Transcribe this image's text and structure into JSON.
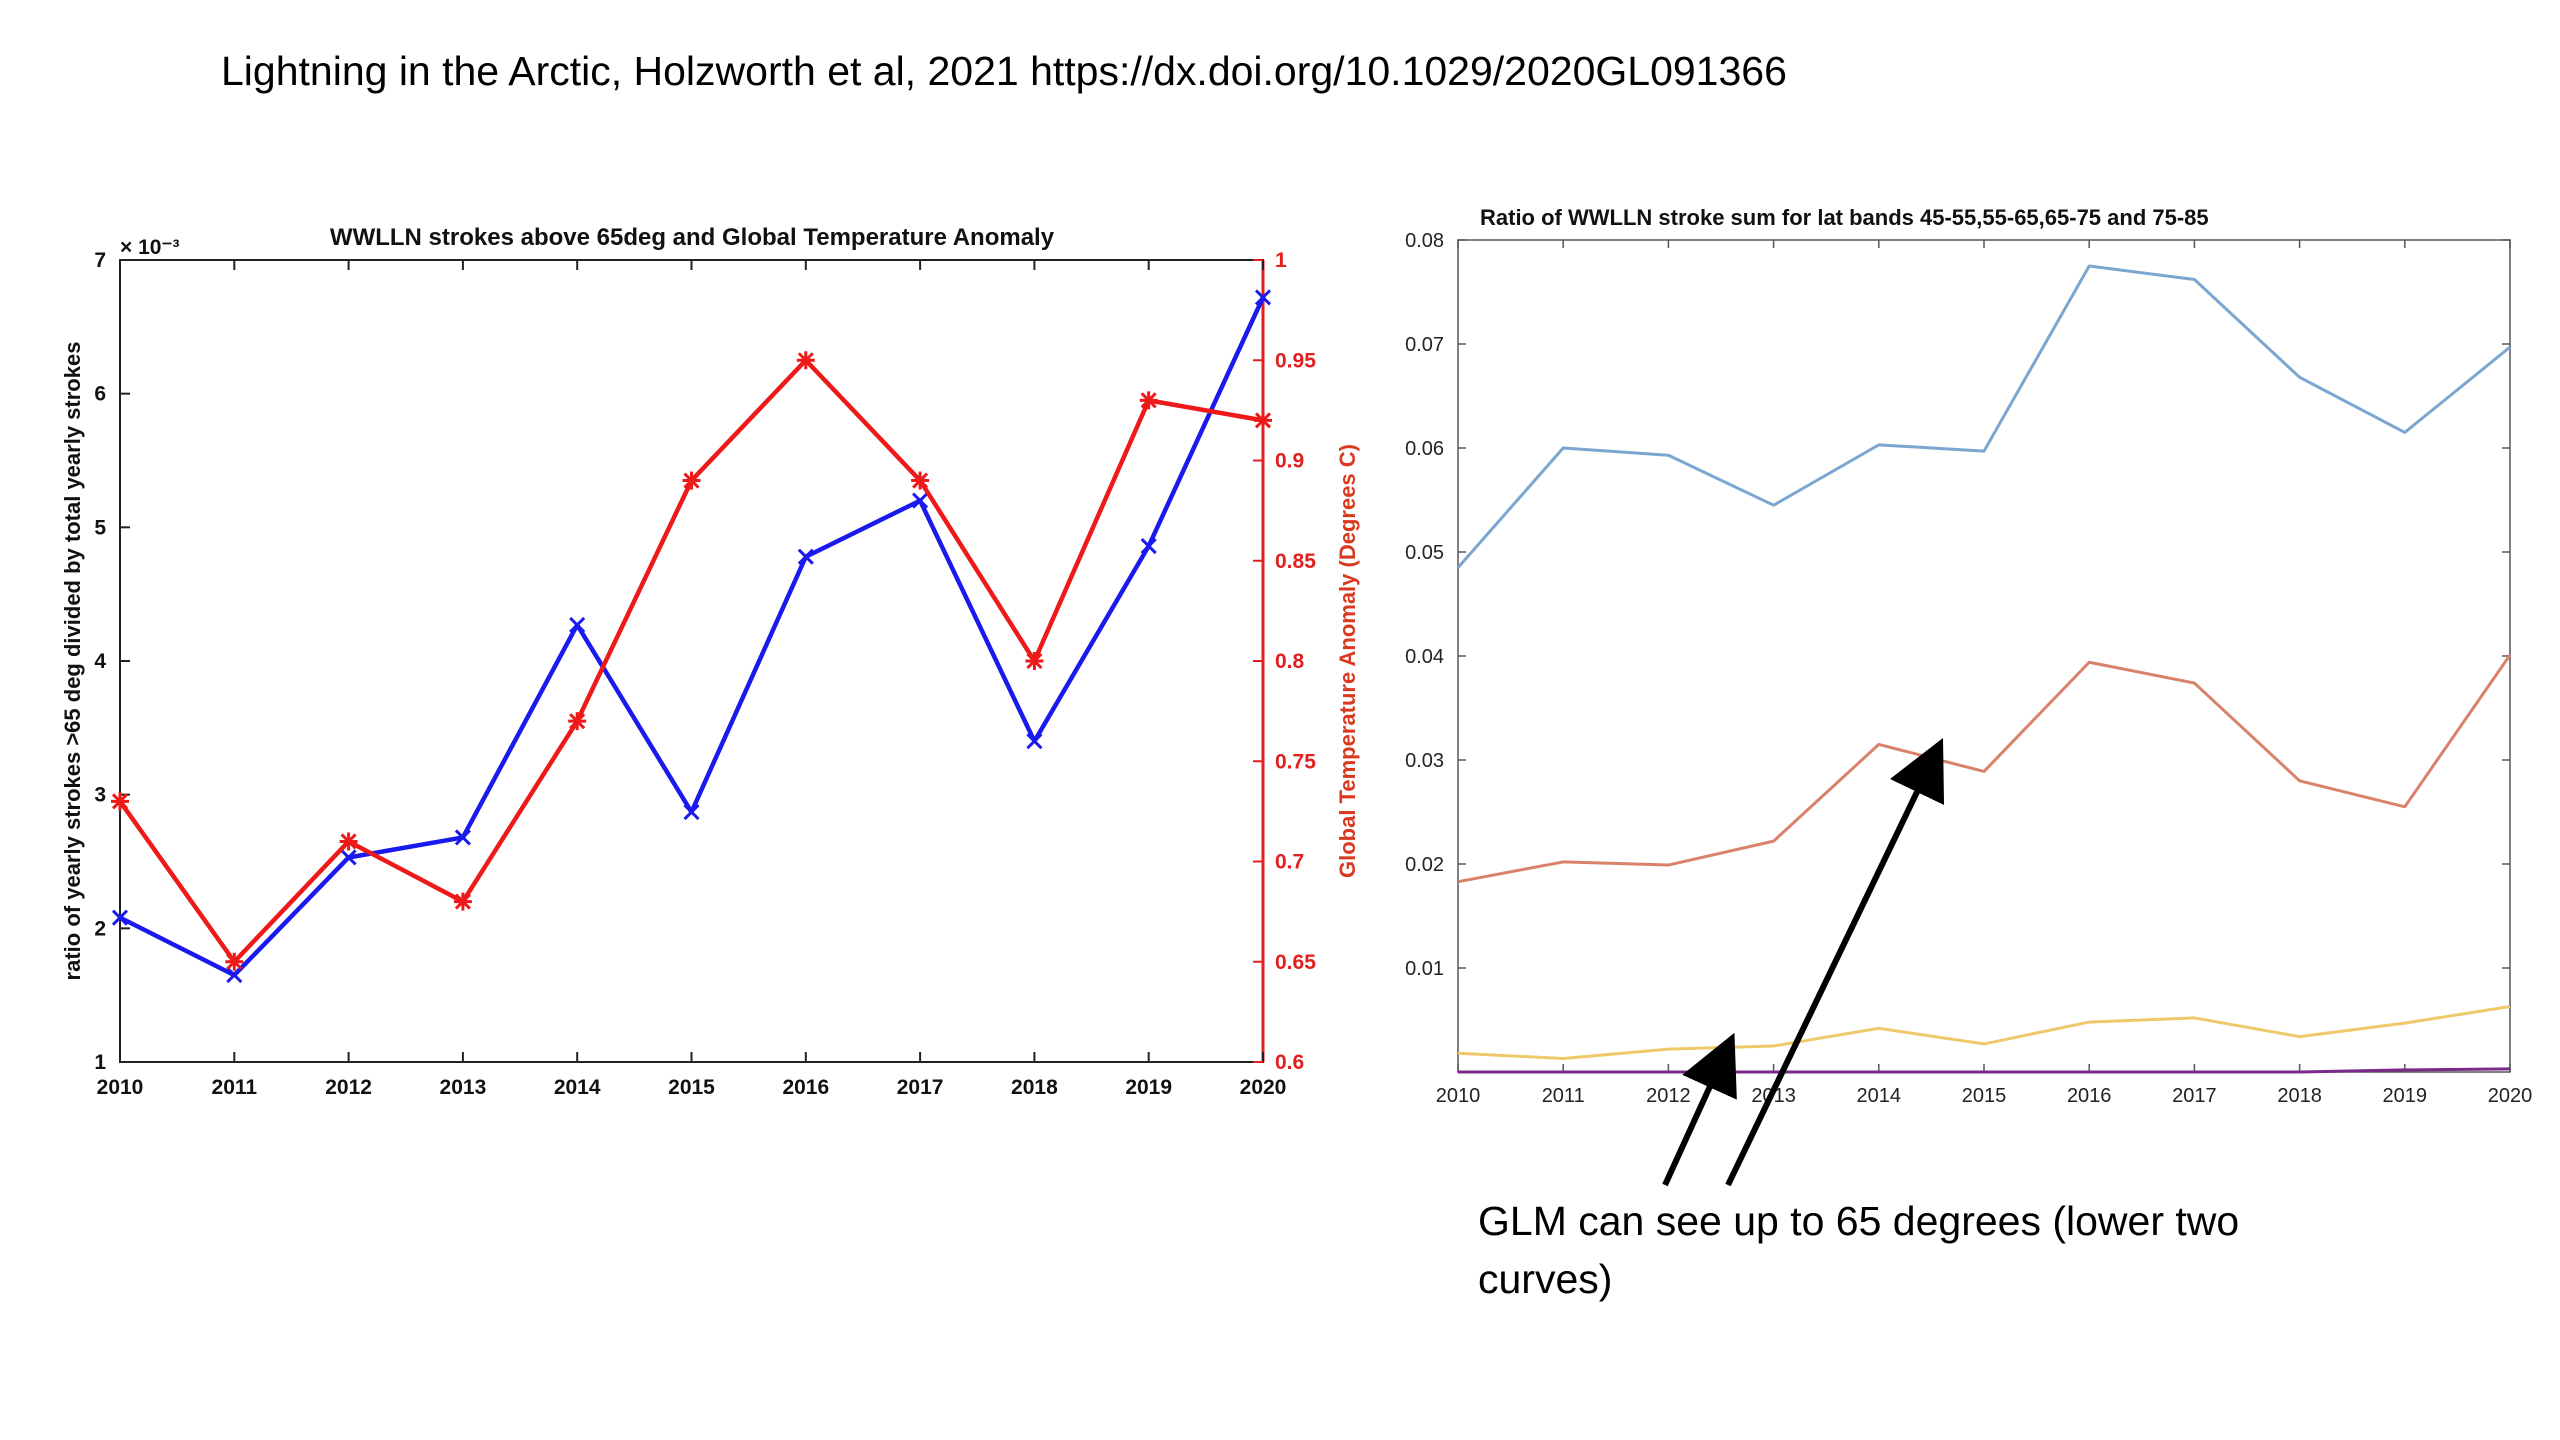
{
  "slide": {
    "title": "Lightning in the Arctic, Holzworth et al, 2021 https://dx.doi.org/10.1029/2020GL091366",
    "note": "GLM can see up to 65 degrees (lower two curves)"
  },
  "chart_data": [
    {
      "type": "line",
      "title": "WWLLN strokes above 65deg and Global Temperature Anomaly",
      "x": [
        2010,
        2011,
        2012,
        2013,
        2014,
        2015,
        2016,
        2017,
        2018,
        2019,
        2020
      ],
      "xlim": [
        2010,
        2020
      ],
      "ylabel": "ratio of yearly strokes >65 deg divided by total yearly strokes",
      "ylim": [
        1,
        7
      ],
      "y_multiplier": "× 10⁻³",
      "ylabel_right": "Global Temperature Anomaly (Degrees C)",
      "ylim_right": [
        0.6,
        1.0
      ],
      "yticks": [
        1,
        2,
        3,
        4,
        5,
        6,
        7
      ],
      "yticks_right": [
        "0.6",
        "0.65",
        "0.7",
        "0.75",
        "0.8",
        "0.85",
        "0.9",
        "0.95",
        "1"
      ],
      "grid": false,
      "series": [
        {
          "color": "#1a1aee",
          "axis": "left",
          "marker": "x",
          "values": [
            2.08,
            1.65,
            2.53,
            2.68,
            4.27,
            2.87,
            4.78,
            5.2,
            3.4,
            4.86,
            6.72
          ]
        },
        {
          "color": "#ee1a1a",
          "axis": "right",
          "marker": "star",
          "values": [
            0.73,
            0.65,
            0.71,
            0.68,
            0.77,
            0.89,
            0.95,
            0.89,
            0.8,
            0.93,
            0.92
          ]
        }
      ]
    },
    {
      "type": "line",
      "title": "Ratio of WWLLN stroke sum for lat bands 45-55,55-65,65-75 and 75-85",
      "x": [
        2010,
        2011,
        2012,
        2013,
        2014,
        2015,
        2016,
        2017,
        2018,
        2019,
        2020
      ],
      "xlim": [
        2010,
        2020
      ],
      "ylim": [
        0,
        0.08
      ],
      "yticks": [
        "0.01",
        "0.02",
        "0.03",
        "0.04",
        "0.05",
        "0.06",
        "0.07",
        "0.08"
      ],
      "grid": false,
      "series": [
        {
          "color": "#7aa6d0",
          "values": [
            0.0485,
            0.06,
            0.0593,
            0.0545,
            0.0603,
            0.0597,
            0.0775,
            0.0762,
            0.0668,
            0.0615,
            0.0697
          ]
        },
        {
          "color": "#d9826a",
          "values": [
            0.0183,
            0.0202,
            0.0199,
            0.0222,
            0.0315,
            0.0289,
            0.0394,
            0.0374,
            0.028,
            0.0255,
            0.0401
          ]
        },
        {
          "color": "#efc86a",
          "values": [
            0.0018,
            0.0013,
            0.0022,
            0.0025,
            0.0042,
            0.0027,
            0.0048,
            0.0052,
            0.0034,
            0.0047,
            0.0063
          ]
        },
        {
          "color": "#7a2a8a",
          "values": [
            0.0,
            0.0,
            0.0,
            0.0,
            0.0,
            0.0,
            0.0,
            0.0,
            0.0,
            0.0002,
            0.0003
          ]
        }
      ]
    }
  ]
}
